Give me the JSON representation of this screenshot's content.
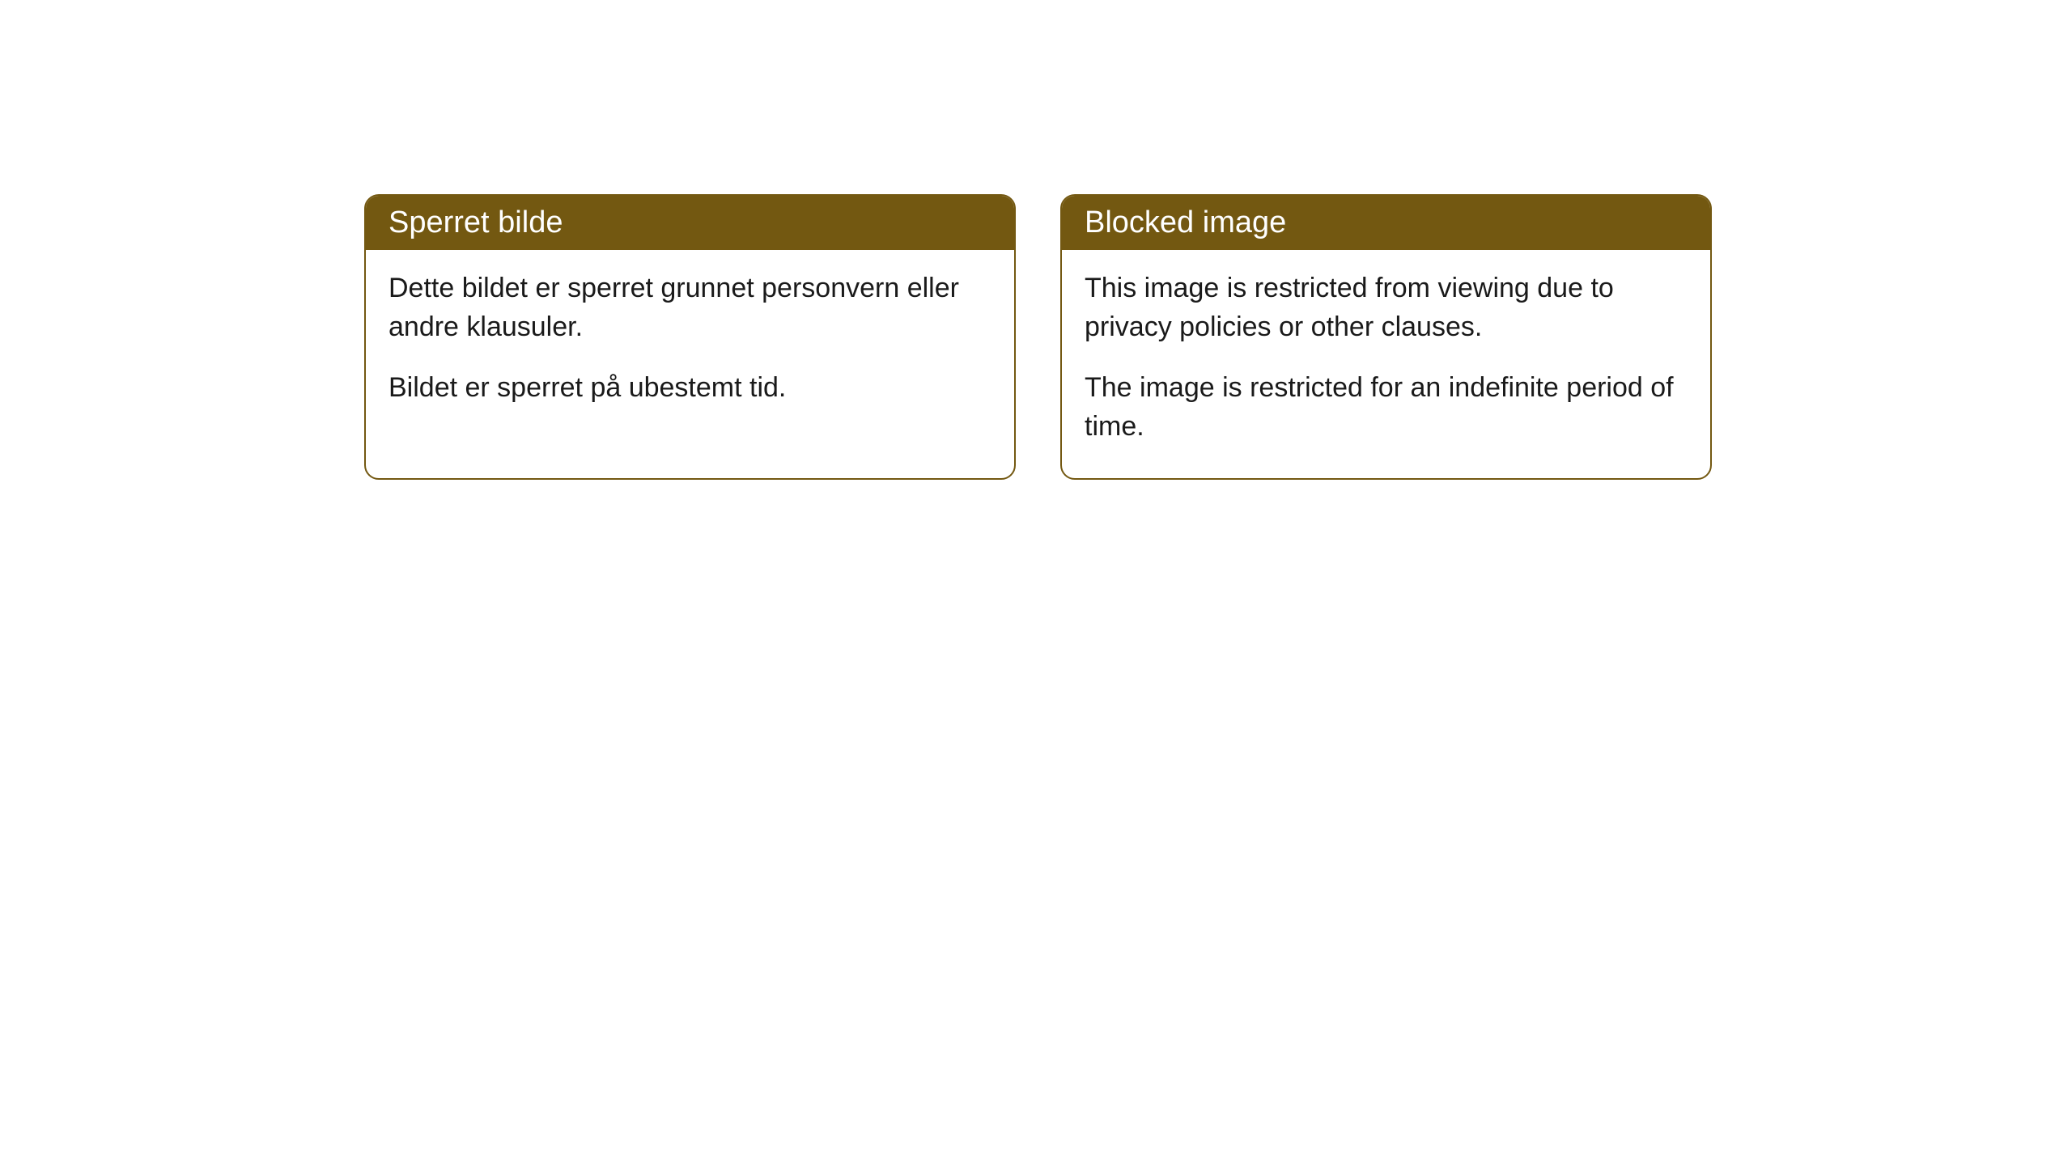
{
  "cards": [
    {
      "title": "Sperret bilde",
      "paragraph1": "Dette bildet er sperret grunnet personvern eller andre klausuler.",
      "paragraph2": "Bildet er sperret på ubestemt tid."
    },
    {
      "title": "Blocked image",
      "paragraph1": "This image is restricted from viewing due to privacy policies or other clauses.",
      "paragraph2": "The image is restricted for an indefinite period of time."
    }
  ],
  "styling": {
    "header_background_color": "#735811",
    "header_text_color": "#ffffff",
    "border_color": "#735811",
    "body_background_color": "#ffffff",
    "body_text_color": "#1a1a1a",
    "border_radius": 18,
    "header_font_size": 38,
    "body_font_size": 34
  }
}
